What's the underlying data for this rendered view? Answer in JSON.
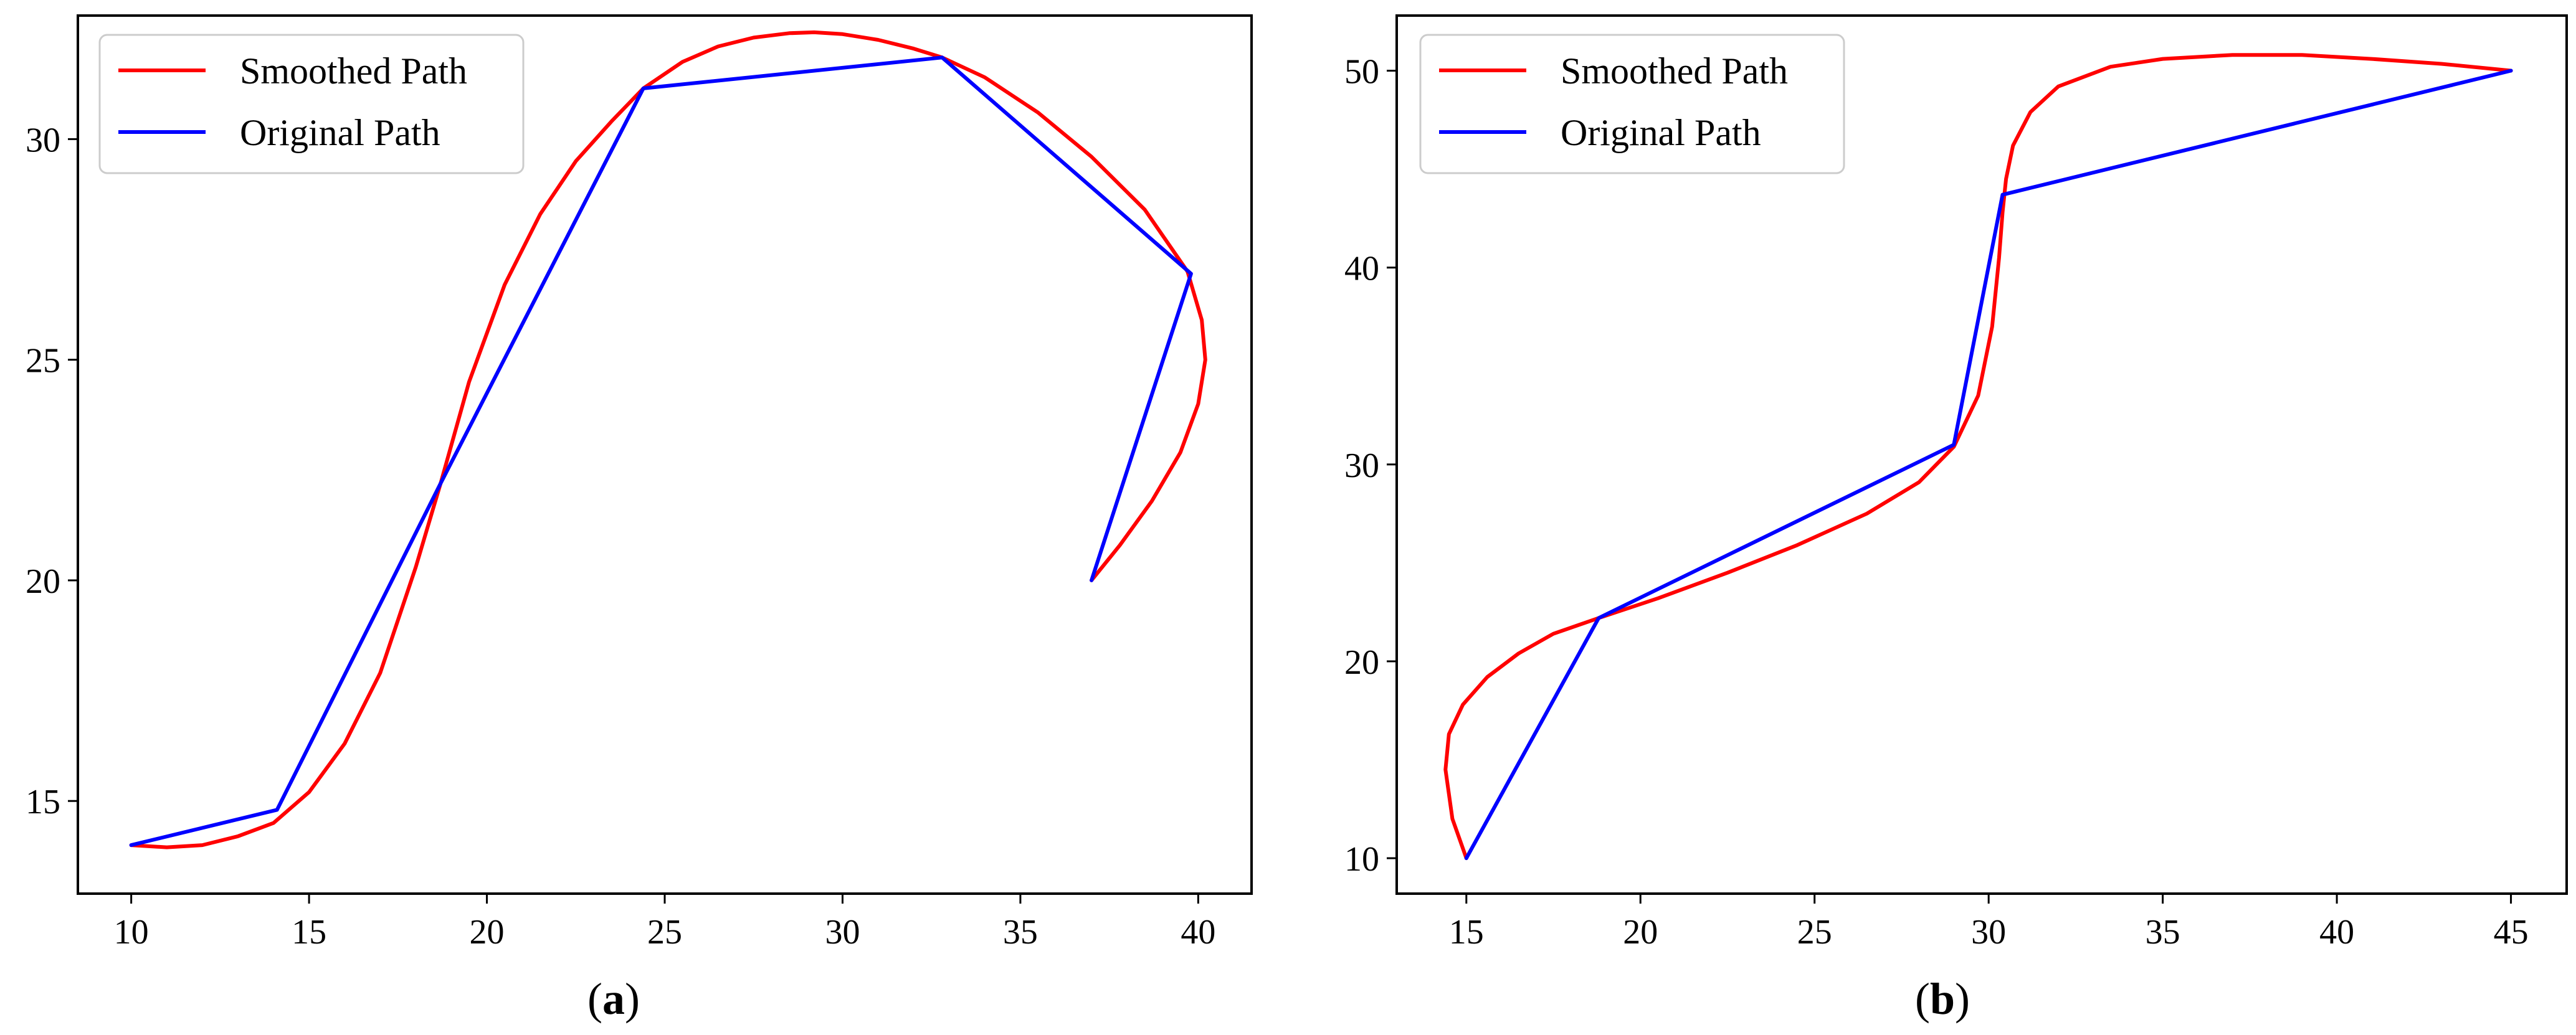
{
  "chart_data": [
    {
      "type": "line",
      "caption": "(a)",
      "caption_letter": "a",
      "title": "",
      "xlabel": "",
      "ylabel": "",
      "xlim": [
        8.5,
        41.5
      ],
      "ylim": [
        12.9,
        32.8
      ],
      "xticks": [
        10,
        15,
        20,
        25,
        30,
        35,
        40
      ],
      "yticks": [
        15,
        20,
        25,
        30
      ],
      "legend": {
        "position": "top-left",
        "entries": [
          "Smoothed Path",
          "Original Path"
        ]
      },
      "series": [
        {
          "name": "Smoothed Path",
          "color": "#ff0000",
          "x": [
            10,
            11,
            12,
            13,
            14,
            15,
            16,
            17,
            18,
            18.7,
            19.5,
            20.5,
            21.5,
            22.5,
            23.5,
            24.4,
            25.5,
            26.5,
            27.5,
            28.5,
            29.2,
            30,
            31,
            32,
            32.8,
            34,
            35.5,
            37,
            38.5,
            39.7,
            40.1,
            40.2,
            40,
            39.5,
            38.7,
            37.8,
            37
          ],
          "y": [
            14.0,
            13.95,
            14.0,
            14.2,
            14.5,
            15.2,
            16.3,
            17.9,
            20.3,
            22.2,
            24.5,
            26.7,
            28.3,
            29.5,
            30.4,
            31.15,
            31.75,
            32.1,
            32.3,
            32.4,
            32.42,
            32.38,
            32.25,
            32.05,
            31.85,
            31.4,
            30.6,
            29.6,
            28.4,
            27.0,
            25.9,
            25.0,
            24.0,
            22.9,
            21.8,
            20.8,
            20.0
          ]
        },
        {
          "name": "Original Path",
          "color": "#0000ff",
          "x": [
            10,
            14.1,
            18.7,
            24.4,
            32.8,
            39.8,
            37
          ],
          "y": [
            14.0,
            14.8,
            22.2,
            31.15,
            31.85,
            26.95,
            20.0
          ]
        }
      ]
    },
    {
      "type": "line",
      "caption": "(b)",
      "caption_letter": "b",
      "title": "",
      "xlabel": "",
      "ylabel": "",
      "xlim": [
        13.0,
        46.6
      ],
      "ylim": [
        8.2,
        52.8
      ],
      "xticks": [
        15,
        20,
        25,
        30,
        35,
        40,
        45
      ],
      "yticks": [
        10,
        20,
        30,
        40,
        50
      ],
      "legend": {
        "position": "top-left",
        "entries": [
          "Smoothed Path",
          "Original Path"
        ]
      },
      "series": [
        {
          "name": "Smoothed Path",
          "color": "#ff0000",
          "x": [
            15,
            14.6,
            14.4,
            14.5,
            14.9,
            15.6,
            16.5,
            17.5,
            18.8,
            20.5,
            22.5,
            24.5,
            26.5,
            28,
            29,
            29.7,
            30.1,
            30.3,
            30.4,
            30.5,
            30.7,
            31.2,
            32,
            33.5,
            35,
            37,
            39,
            41,
            43,
            45
          ],
          "y": [
            10.0,
            12.0,
            14.5,
            16.3,
            17.8,
            19.2,
            20.4,
            21.4,
            22.2,
            23.2,
            24.5,
            25.9,
            27.5,
            29.1,
            30.9,
            33.5,
            37.0,
            40.5,
            42.8,
            44.5,
            46.2,
            47.9,
            49.2,
            50.2,
            50.6,
            50.8,
            50.8,
            50.6,
            50.35,
            50.0
          ]
        },
        {
          "name": "Original Path",
          "color": "#0000ff",
          "x": [
            15,
            18.8,
            29,
            30.4,
            45
          ],
          "y": [
            10.0,
            22.2,
            31.0,
            43.7,
            50.0
          ]
        }
      ]
    }
  ]
}
